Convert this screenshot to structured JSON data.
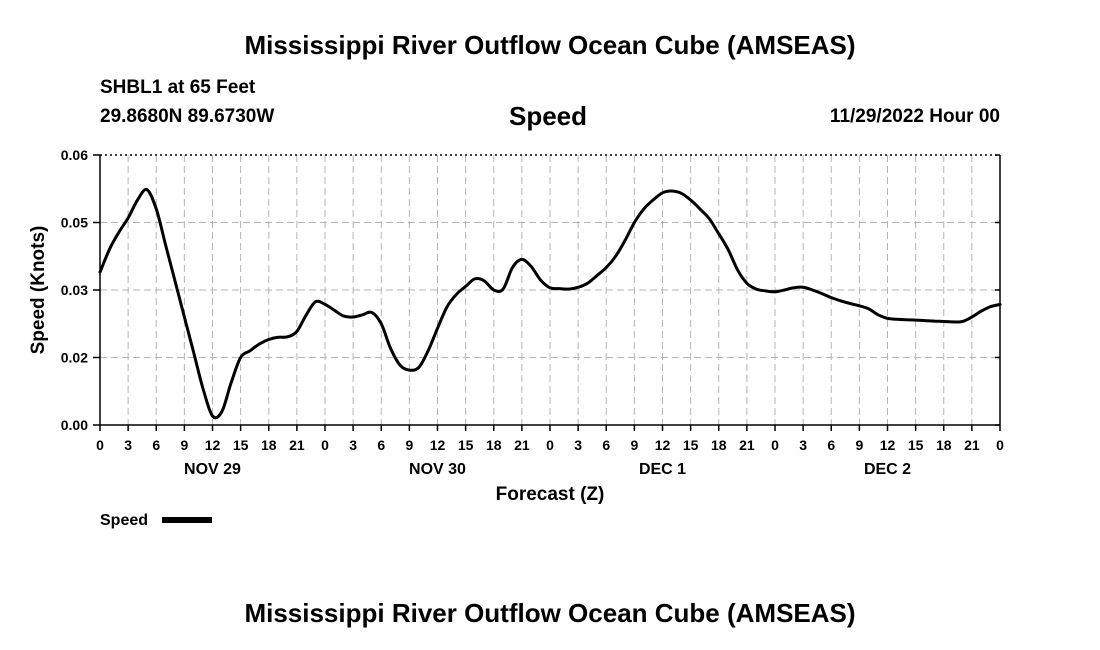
{
  "header": {
    "title": "Mississippi River Outflow Ocean Cube (AMSEAS)",
    "station": "SHBL1 at 65 Feet",
    "coords": "29.8680N  89.6730W",
    "variable": "Speed",
    "date": "11/29/2022 Hour 00"
  },
  "footer": {
    "title": "Mississippi River Outflow Ocean Cube (AMSEAS)"
  },
  "chart_data": {
    "type": "line",
    "ylabel": "Speed (Knots)",
    "xlabel": "Forecast (Z)",
    "ylim": [
      0,
      0.06
    ],
    "yticks": [
      "0.00",
      "0.02",
      "0.03",
      "0.05",
      "0.06"
    ],
    "xlim": [
      0,
      96
    ],
    "xtick_labels": [
      "0",
      "3",
      "6",
      "9",
      "12",
      "15",
      "18",
      "21",
      "0",
      "3",
      "6",
      "9",
      "12",
      "15",
      "18",
      "21",
      "0",
      "3",
      "6",
      "9",
      "12",
      "15",
      "18",
      "21",
      "0",
      "3",
      "6",
      "9",
      "12",
      "15",
      "18",
      "21",
      "0"
    ],
    "day_labels": [
      {
        "label": "NOV 29",
        "hour": 12
      },
      {
        "label": "NOV 30",
        "hour": 36
      },
      {
        "label": "DEC 1",
        "hour": 60
      },
      {
        "label": "DEC 2",
        "hour": 84
      }
    ],
    "grid": true,
    "legend": "bottom-left",
    "series": [
      {
        "name": "Speed",
        "color": "#000000",
        "x": [
          0,
          1,
          2,
          3,
          4,
          5,
          6,
          7,
          8,
          9,
          10,
          11,
          12,
          13,
          14,
          15,
          16,
          17,
          18,
          19,
          20,
          21,
          22,
          23,
          24,
          25,
          26,
          27,
          28,
          29,
          30,
          31,
          32,
          33,
          34,
          35,
          36,
          37,
          38,
          39,
          40,
          41,
          42,
          43,
          44,
          45,
          46,
          47,
          48,
          49,
          50,
          51,
          52,
          53,
          54,
          55,
          56,
          57,
          58,
          59,
          60,
          61,
          62,
          63,
          64,
          65,
          66,
          67,
          68,
          69,
          70,
          71,
          72,
          73,
          74,
          75,
          76,
          77,
          78,
          79,
          80,
          81,
          82,
          83,
          84,
          85,
          86,
          87,
          88,
          89,
          90,
          91,
          92,
          93,
          94,
          95,
          96
        ],
        "values": [
          0.034,
          0.039,
          0.0428,
          0.046,
          0.05,
          0.0523,
          0.048,
          0.04,
          0.032,
          0.024,
          0.016,
          0.008,
          0.002,
          0.003,
          0.0095,
          0.015,
          0.0165,
          0.018,
          0.019,
          0.0195,
          0.0196,
          0.0208,
          0.0245,
          0.0274,
          0.0268,
          0.0255,
          0.0242,
          0.024,
          0.0245,
          0.025,
          0.0225,
          0.017,
          0.0133,
          0.0122,
          0.0128,
          0.0165,
          0.0215,
          0.0262,
          0.029,
          0.0308,
          0.0325,
          0.032,
          0.03,
          0.0302,
          0.035,
          0.0368,
          0.0352,
          0.0322,
          0.0305,
          0.0303,
          0.0302,
          0.0306,
          0.0315,
          0.0332,
          0.035,
          0.0375,
          0.041,
          0.045,
          0.048,
          0.05,
          0.0516,
          0.052,
          0.0515,
          0.05,
          0.048,
          0.0458,
          0.0425,
          0.039,
          0.0345,
          0.0315,
          0.0302,
          0.0298,
          0.0296,
          0.03,
          0.0305,
          0.0306,
          0.03,
          0.0292,
          0.0283,
          0.0276,
          0.027,
          0.0265,
          0.0258,
          0.0245,
          0.0237,
          0.0235,
          0.0234,
          0.0233,
          0.0232,
          0.0231,
          0.023,
          0.0229,
          0.023,
          0.024,
          0.0253,
          0.0263,
          0.0268
        ]
      }
    ]
  }
}
